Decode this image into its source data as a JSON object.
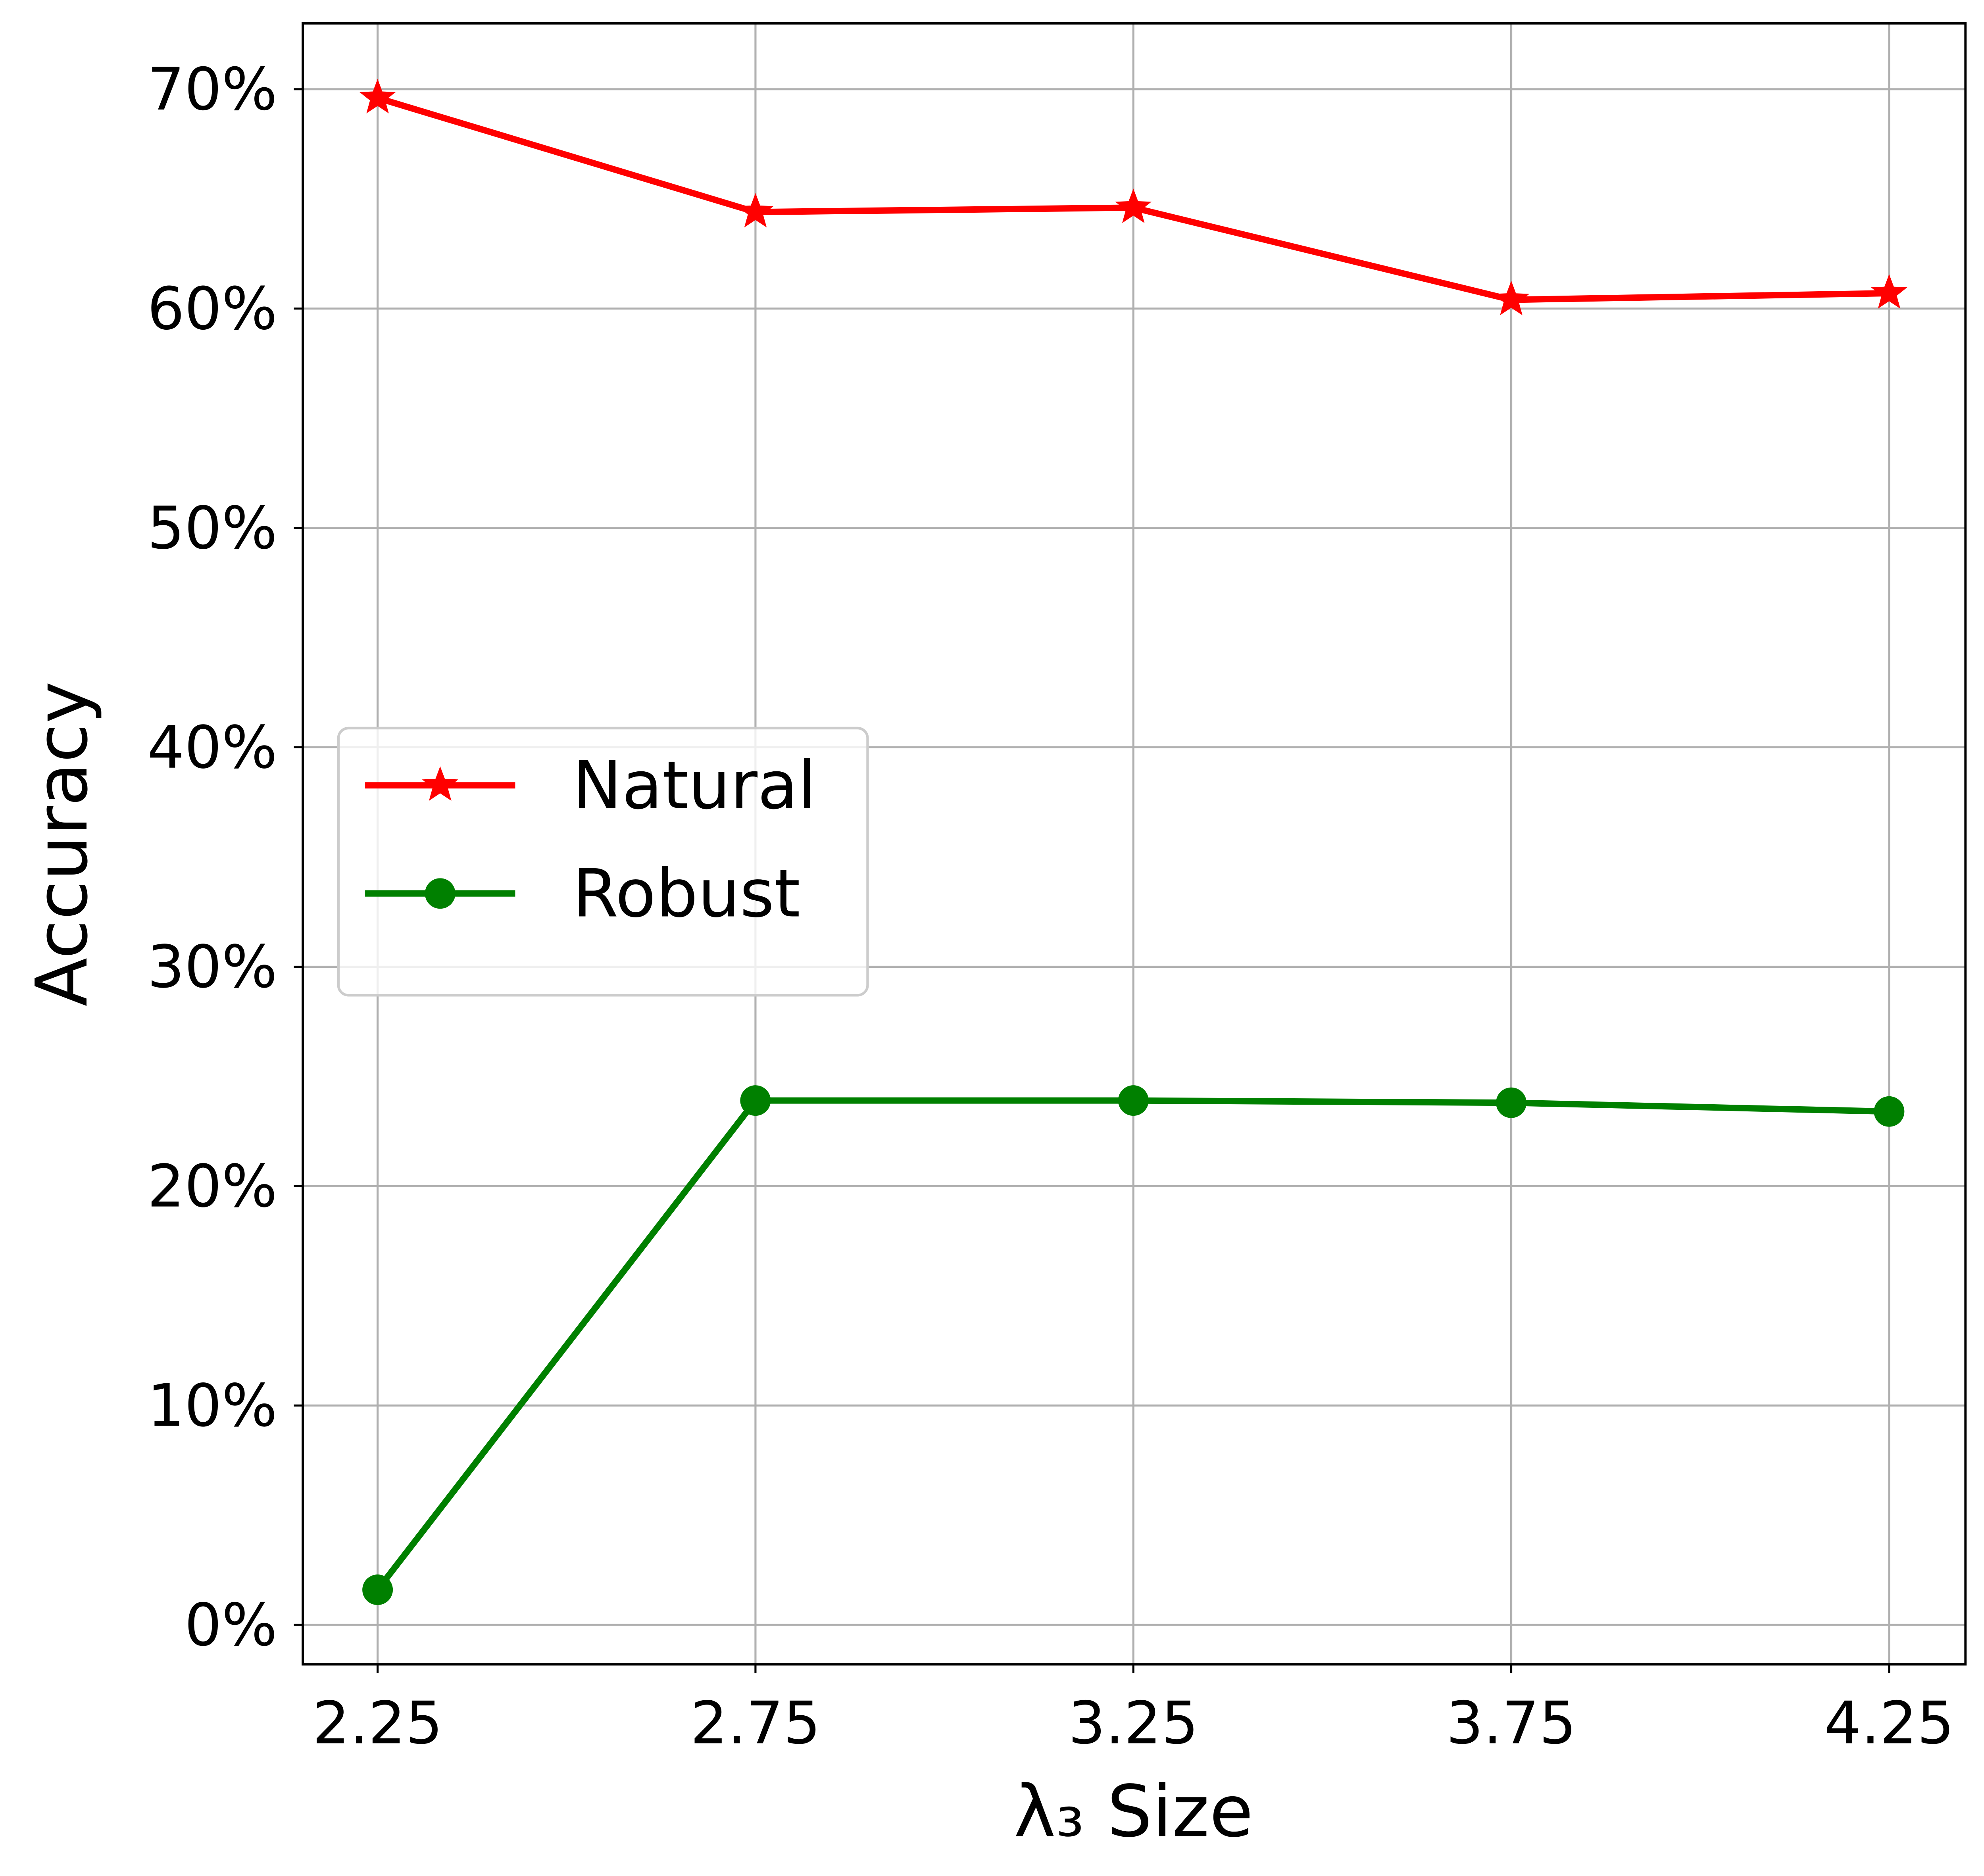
{
  "chart_data": {
    "type": "line",
    "x_label": "λ₃ Size",
    "y_label": "Accuracy",
    "x": [
      2.25,
      2.75,
      3.25,
      3.75,
      4.25
    ],
    "series": [
      {
        "name": "Natural",
        "color": "#ff0000",
        "marker": "star",
        "values": [
          69.6,
          64.4,
          64.6,
          60.4,
          60.7
        ]
      },
      {
        "name": "Robust",
        "color": "#008000",
        "marker": "circle",
        "values": [
          1.6,
          23.9,
          23.9,
          23.8,
          23.4
        ]
      }
    ],
    "xlim": [
      2.151,
      4.351
    ],
    "ylim": [
      -1.8,
      73.0
    ],
    "xticks": [
      2.25,
      2.75,
      3.25,
      3.75,
      4.25
    ],
    "yticks": [
      {
        "value": 0,
        "label": "0%"
      },
      {
        "value": 10,
        "label": "10%"
      },
      {
        "value": 20,
        "label": "20%"
      },
      {
        "value": 30,
        "label": "30%"
      },
      {
        "value": 40,
        "label": "40%"
      },
      {
        "value": 50,
        "label": "50%"
      },
      {
        "value": 60,
        "label": "60%"
      },
      {
        "value": 70,
        "label": "70%"
      }
    ],
    "grid": true,
    "legend": "center left"
  }
}
